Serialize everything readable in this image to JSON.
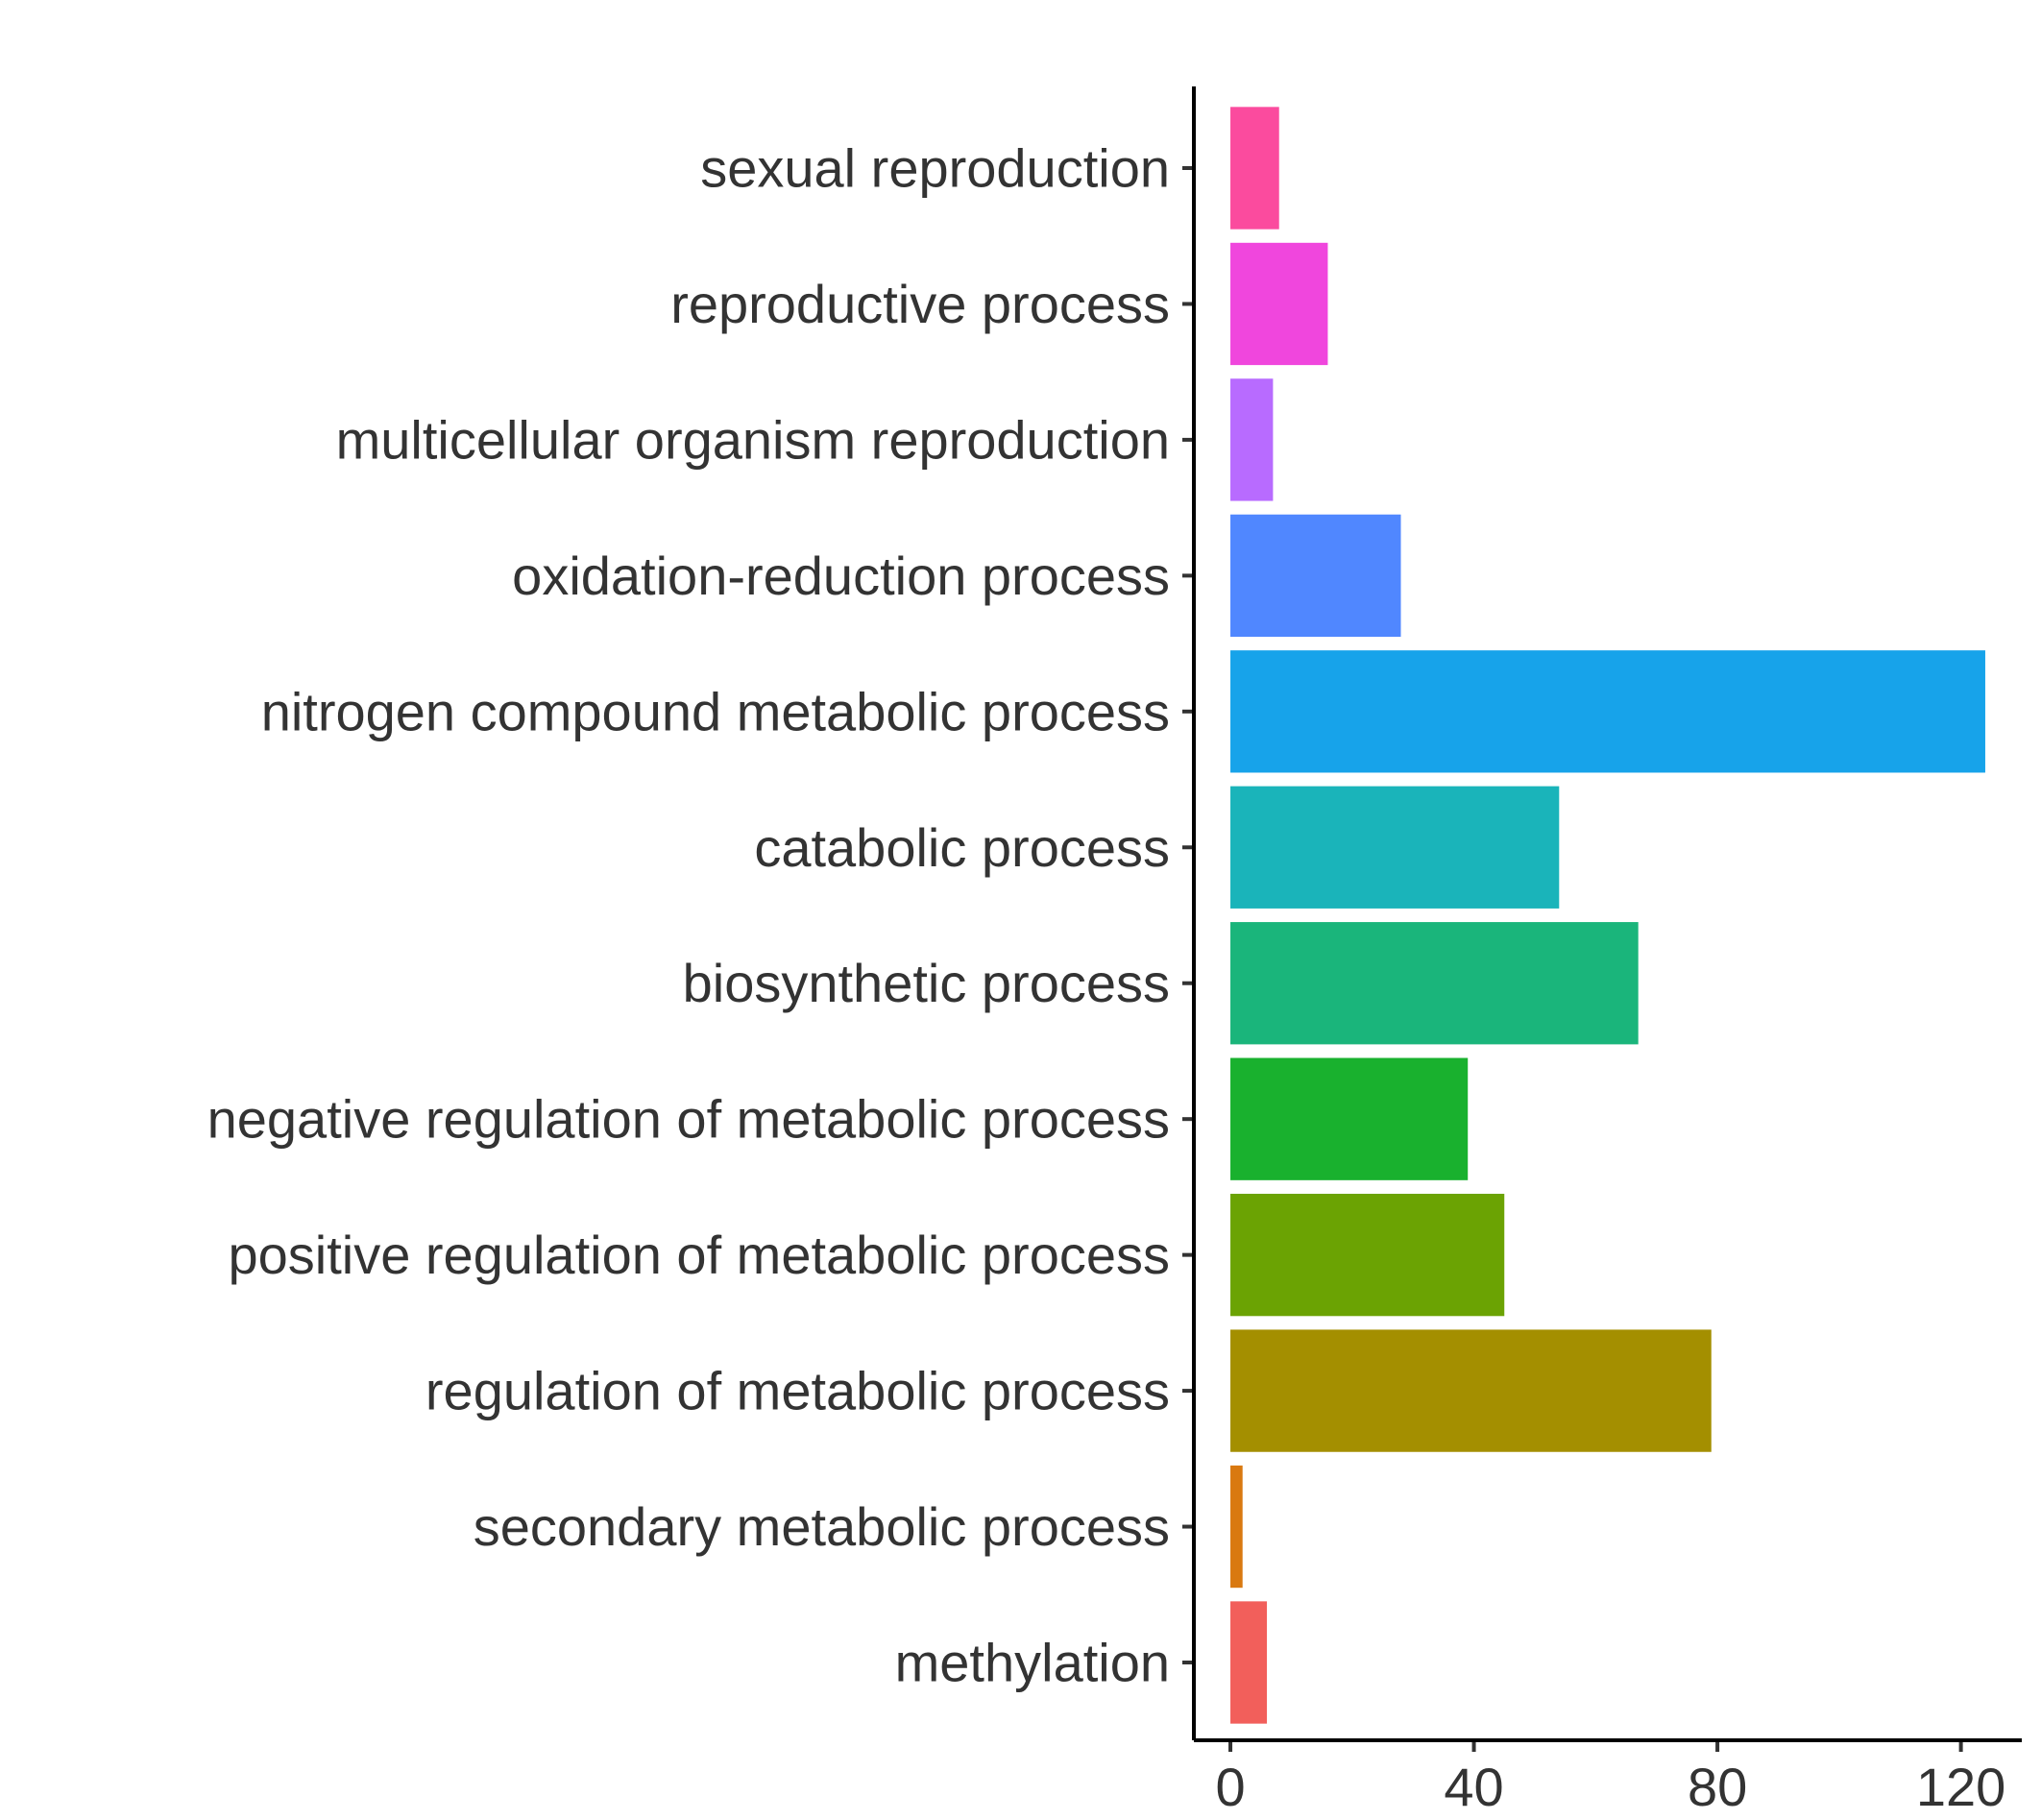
{
  "chart_data": {
    "type": "bar",
    "orientation": "horizontal",
    "title": "",
    "xlabel": "",
    "ylabel": "",
    "xlim": [
      -6,
      130
    ],
    "x_ticks": [
      0,
      40,
      80,
      120
    ],
    "grid": false,
    "legend": "none",
    "categories": [
      "sexual reproduction",
      "reproductive process",
      "multicellular organism reproduction",
      "oxidation-reduction process",
      "nitrogen compound metabolic process",
      "catabolic process",
      "biosynthetic process",
      "negative regulation of metabolic process",
      "positive regulation of metabolic process",
      "regulation of metabolic process",
      "secondary metabolic process",
      "methylation"
    ],
    "values": [
      8,
      16,
      7,
      28,
      124,
      54,
      67,
      39,
      45,
      79,
      2,
      6
    ],
    "colors": [
      "#FB4B9E",
      "#F046DD",
      "#B86BFF",
      "#5087FF",
      "#17A3EA",
      "#1AB4BA",
      "#1AB57B",
      "#19B12E",
      "#6BA303",
      "#A48F00",
      "#D97910",
      "#F25F5B"
    ]
  }
}
